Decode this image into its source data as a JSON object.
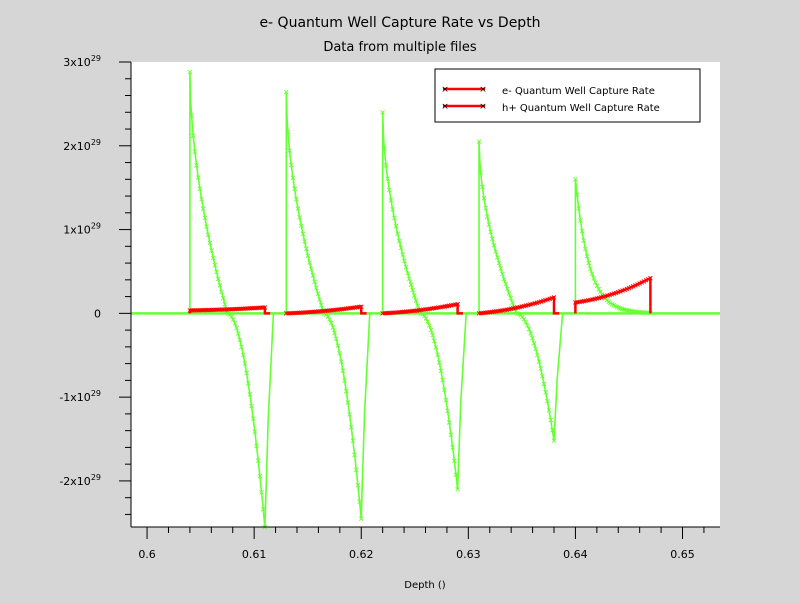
{
  "chart_data": {
    "type": "line",
    "title": "e- Quantum Well Capture Rate vs Depth",
    "subtitle": "Data from multiple files",
    "xlabel": "Depth ()",
    "ylabel": "",
    "xlim": [
      0.5985,
      0.6535
    ],
    "ylim": [
      -2.55e+29,
      3e+29
    ],
    "grid": false,
    "legend_position": "top-right",
    "x_ticks": [
      {
        "value": 0.6,
        "label": "0.6"
      },
      {
        "value": 0.61,
        "label": "0.61"
      },
      {
        "value": 0.62,
        "label": "0.62"
      },
      {
        "value": 0.63,
        "label": "0.63"
      },
      {
        "value": 0.64,
        "label": "0.64"
      },
      {
        "value": 0.65,
        "label": "0.65"
      }
    ],
    "y_ticks": [
      {
        "value": 3e+29,
        "base": "3x10",
        "exp": "29"
      },
      {
        "value": 2e+29,
        "base": "2x10",
        "exp": "29"
      },
      {
        "value": 1e+29,
        "base": "1x10",
        "exp": "29"
      },
      {
        "value": 0,
        "base": "0",
        "exp": ""
      },
      {
        "value": -1e+29,
        "base": "-1x10",
        "exp": "29"
      },
      {
        "value": -2e+29,
        "base": "-2x10",
        "exp": "29"
      }
    ],
    "series": [
      {
        "name": "e- Quantum Well Capture Rate",
        "color": "#ff0000",
        "segments": [
          {
            "x0": 0.604,
            "x1": 0.611,
            "y0": 3.5e+27,
            "y1": 7e+27,
            "trail": [
              [
                0.611,
                0.0
              ],
              [
                0.6115,
                0.0
              ]
            ]
          },
          {
            "x0": 0.613,
            "x1": 0.62,
            "y0": 0.0,
            "y1": 8e+27,
            "trail": [
              [
                0.62,
                0.0
              ],
              [
                0.6205,
                0.0
              ]
            ]
          },
          {
            "x0": 0.622,
            "x1": 0.629,
            "y0": 0.0,
            "y1": 1.1e+28,
            "trail": [
              [
                0.629,
                0.0
              ],
              [
                0.6295,
                0.0
              ]
            ]
          },
          {
            "x0": 0.631,
            "x1": 0.638,
            "y0": 0.0,
            "y1": 1.9e+28,
            "trail": [
              [
                0.638,
                0.0
              ],
              [
                0.6385,
                0.0
              ]
            ]
          },
          {
            "x0": 0.64,
            "x1": 0.647,
            "y0": 1.3e+28,
            "y1": 4.2e+28,
            "trail": [
              [
                0.647,
                2e+28
              ],
              [
                0.647,
                0.0
              ]
            ]
          }
        ]
      },
      {
        "name": "h+ Quantum Well Capture Rate",
        "color": "#66ff33",
        "segments": [
          {
            "x0": 0.604,
            "x1": 0.611,
            "y0": 2.88e+29,
            "y1": -2.55e+29,
            "cross": 0.6075,
            "trail": [
              [
                0.6113,
                -1.3e+29
              ],
              [
                0.6118,
                0.0
              ]
            ]
          },
          {
            "x0": 0.613,
            "x1": 0.62,
            "y0": 2.64e+29,
            "y1": -2.45e+29,
            "cross": 0.6165,
            "trail": [
              [
                0.6203,
                -1.2e+29
              ],
              [
                0.6208,
                0.0
              ]
            ]
          },
          {
            "x0": 0.622,
            "x1": 0.629,
            "y0": 2.4e+29,
            "y1": -2.1e+29,
            "cross": 0.6255,
            "trail": [
              [
                0.6293,
                -1.05e+29
              ],
              [
                0.6298,
                0.0
              ]
            ]
          },
          {
            "x0": 0.631,
            "x1": 0.638,
            "y0": 2.05e+29,
            "y1": -1.52e+29,
            "cross": 0.6345,
            "trail": [
              [
                0.6383,
                -7.8e+28
              ],
              [
                0.6388,
                0.0
              ]
            ]
          },
          {
            "x0": 0.64,
            "x1": 0.647,
            "y0": 1.6e+29,
            "y1": 0.0,
            "cross": null,
            "trail": []
          }
        ]
      }
    ]
  }
}
